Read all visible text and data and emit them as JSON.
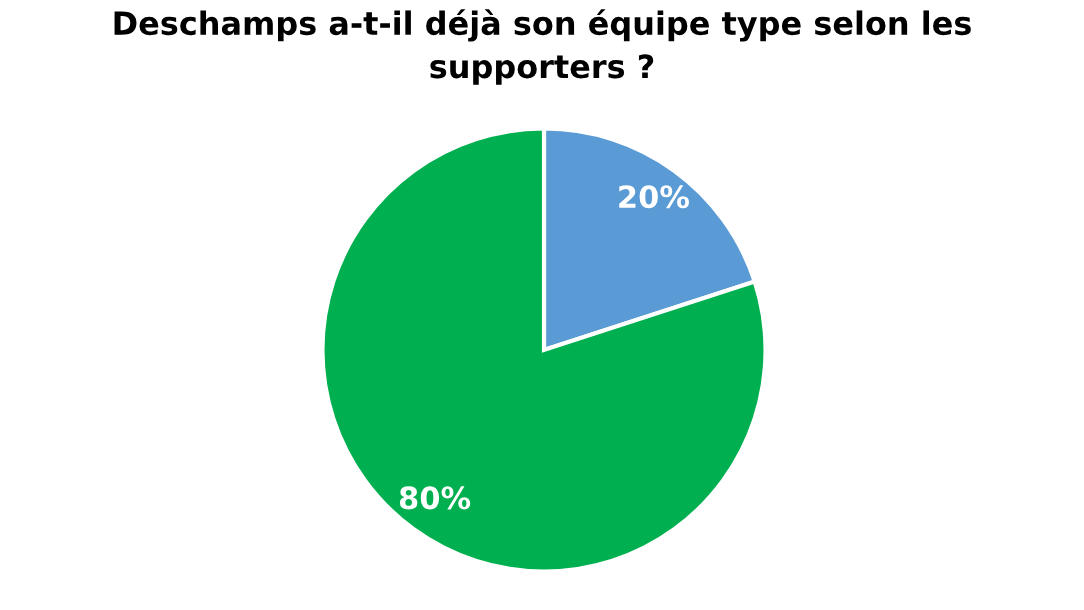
{
  "chart_data": {
    "type": "pie",
    "title": "Deschamps a-t-il déjà son équipe type selon les\nsupporters ?",
    "categories": [
      null,
      null
    ],
    "values": [
      20,
      80
    ],
    "colors": [
      "#5b9bd5",
      "#00b050"
    ],
    "value_labels": [
      "20%",
      "80%"
    ]
  }
}
